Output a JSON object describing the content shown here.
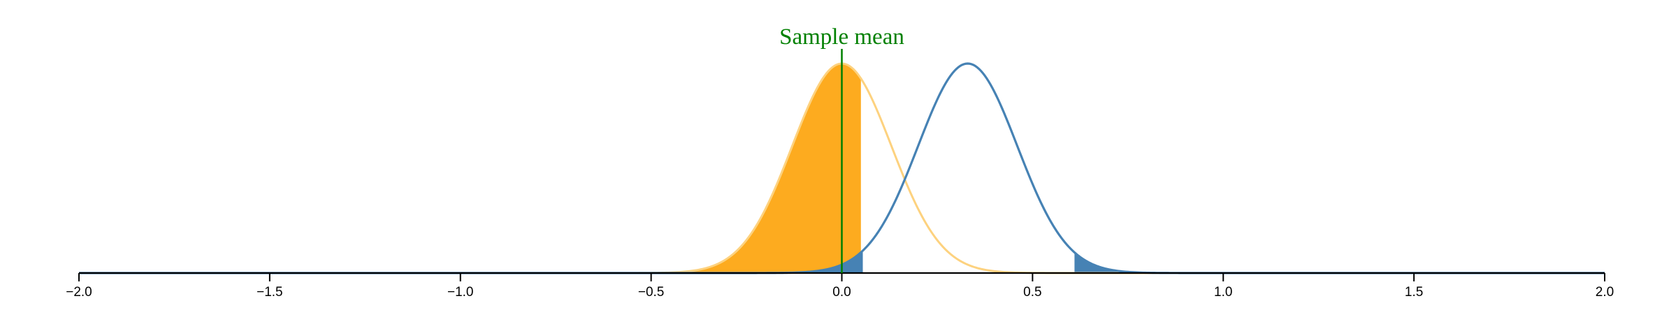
{
  "chart_data": {
    "type": "area",
    "title": "",
    "xlabel": "",
    "ylabel": "",
    "xlim": [
      -2.0,
      2.0
    ],
    "x_ticks": [
      -2.0,
      -1.5,
      -1.0,
      -0.5,
      0.0,
      0.5,
      1.0,
      1.5,
      2.0
    ],
    "x_tick_labels": [
      "−2.0",
      "−1.5",
      "−1.0",
      "−0.5",
      "0.0",
      "0.5",
      "1.0",
      "1.5",
      "2.0"
    ],
    "grid": false,
    "legend": "none",
    "series": [
      {
        "distribution": "normal",
        "mean": 0.0,
        "sd": 0.13,
        "line_color": "#fdd27f",
        "fill_color": "#fdab1f",
        "shaded_region": [
          -0.5,
          0.05
        ]
      },
      {
        "distribution": "normal",
        "mean": 0.33,
        "sd": 0.13,
        "line_color": "#4682b4",
        "fill_color": "#4682b4",
        "shaded_regions": [
          [
            -0.1,
            0.055
          ],
          [
            0.61,
            1.05
          ]
        ]
      }
    ],
    "annotations": [
      {
        "text": "Sample mean",
        "x": 0.0,
        "color": "#008000"
      }
    ]
  }
}
